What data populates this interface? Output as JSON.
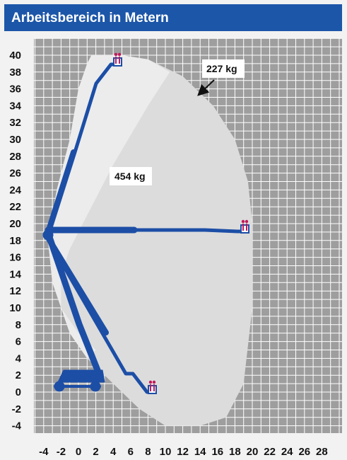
{
  "header": {
    "title": "Arbeitsbereich in Metern"
  },
  "labels": {
    "load_max": "454 kg",
    "load_reduced": "227 kg"
  },
  "colors": {
    "header": "#1c56a8",
    "boom": "#1c4ea6",
    "grid_bg": "#9e9e9e",
    "envelope": "#dcdcdc",
    "platform": "#c2185b"
  },
  "chart_data": {
    "type": "diagram",
    "xlim": [
      -4,
      28
    ],
    "ylim": [
      -4,
      40
    ],
    "grid": true,
    "x_ticks": [
      "-4",
      "-2",
      "0",
      "2",
      "4",
      "6",
      "8",
      "10",
      "12",
      "14",
      "16",
      "18",
      "20",
      "22",
      "24",
      "26",
      "28"
    ],
    "y_ticks": [
      "40",
      "38",
      "36",
      "34",
      "32",
      "30",
      "28",
      "26",
      "24",
      "22",
      "20",
      "18",
      "16",
      "14",
      "12",
      "10",
      "8",
      "6",
      "4",
      "2",
      "0",
      "-2",
      "-4"
    ],
    "envelope_outer": [
      [
        1.5,
        40
      ],
      [
        5,
        40
      ],
      [
        8,
        39.5
      ],
      [
        12,
        37.5
      ],
      [
        15.5,
        34
      ],
      [
        18,
        30
      ],
      [
        19.5,
        25
      ],
      [
        20,
        20
      ],
      [
        20,
        10
      ],
      [
        19,
        1
      ],
      [
        17,
        -3
      ],
      [
        14,
        -4
      ],
      [
        10,
        -4
      ],
      [
        7,
        -2
      ],
      [
        4,
        1
      ],
      [
        1,
        4
      ],
      [
        -1,
        7
      ],
      [
        -2,
        10
      ],
      [
        -3,
        13
      ],
      [
        -3.5,
        18
      ],
      [
        -2.5,
        24
      ],
      [
        -1,
        30
      ],
      [
        0,
        36
      ],
      [
        1,
        39
      ]
    ],
    "envelope_inner": [
      [
        1.5,
        40
      ],
      [
        5,
        40
      ],
      [
        8,
        39.5
      ],
      [
        10.5,
        38
      ],
      [
        8,
        34
      ],
      [
        4,
        27
      ],
      [
        1,
        21
      ],
      [
        -1,
        17
      ],
      [
        -2,
        14
      ],
      [
        -2,
        10
      ],
      [
        0,
        7
      ],
      [
        2,
        5
      ],
      [
        1,
        4
      ],
      [
        -1,
        7
      ],
      [
        -2,
        10
      ],
      [
        -3,
        13
      ],
      [
        -3.5,
        18
      ],
      [
        -2.5,
        24
      ],
      [
        -1,
        30
      ],
      [
        0,
        36
      ],
      [
        1,
        39
      ]
    ],
    "annotations": [
      {
        "text_key": "load_max",
        "x": 6,
        "y": 25
      },
      {
        "text_key": "load_reduced",
        "x": 15.5,
        "y": 38,
        "arrow_to": [
          13.5,
          35.2
        ]
      }
    ]
  }
}
